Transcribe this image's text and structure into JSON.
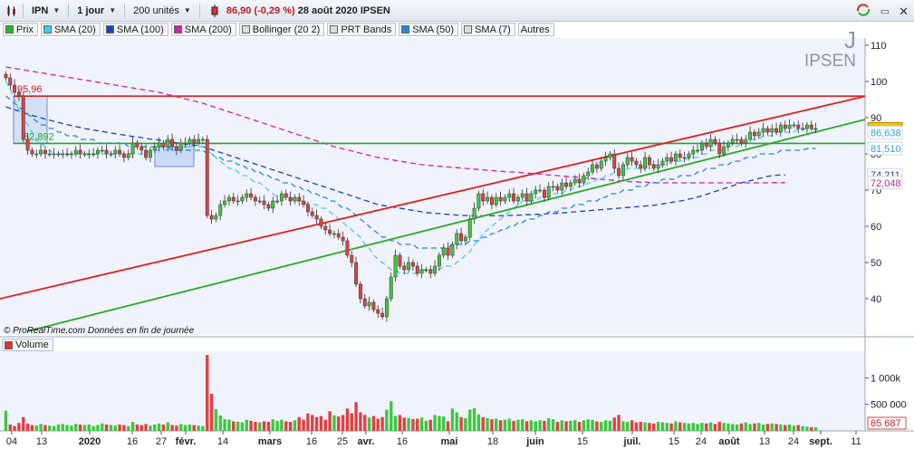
{
  "toolbar": {
    "symbol": "IPN",
    "period": "1 jour",
    "units": "200 unités",
    "price": "86,90",
    "change": "(-0,29 %)",
    "date": "28 août 2020",
    "name": "IPSEN"
  },
  "legend": [
    {
      "label": "Prix",
      "color": "#2bb52b"
    },
    {
      "label": "SMA (20)",
      "color": "#44ccee"
    },
    {
      "label": "SMA (100)",
      "color": "#1844b8"
    },
    {
      "label": "SMA (200)",
      "color": "#cc22aa"
    },
    {
      "label": "Bollinger (20 2)",
      "color": "#dddddd"
    },
    {
      "label": "PRT Bands",
      "color": "#dddddd"
    },
    {
      "label": "SMA (50)",
      "color": "#2288dd"
    },
    {
      "label": "SMA (7)",
      "color": "#dddddd"
    },
    {
      "label": "Autres",
      "color": null
    }
  ],
  "ticker": {
    "letter": "J",
    "name": "IPSEN"
  },
  "source_note": "© ProRealTime.com  Données en fin de journée",
  "volume_title": "Volume",
  "price_axis": {
    "ticks": [
      "110",
      "100",
      "90",
      "80",
      "70",
      "60",
      "50",
      "40"
    ],
    "badges": [
      {
        "text": "86,90",
        "color": "#111",
        "bg": "#f5c400"
      },
      {
        "text": "86,638",
        "color": "#2aa6d6",
        "bg": "#ffffff"
      },
      {
        "text": "81,510",
        "color": "#2aa6d6",
        "bg": "#ffffff"
      },
      {
        "text": "74,211",
        "color": "#1a3fa8",
        "bg": "#ffffff"
      },
      {
        "text": "72,048",
        "color": "#b5279a",
        "bg": "#ffffff"
      }
    ]
  },
  "volume_axis": {
    "ticks": [
      "1 000k",
      "500 000"
    ],
    "last": "65 687"
  },
  "annotations": {
    "high": "95,96",
    "low": "82,892"
  },
  "x_axis": {
    "labels": [
      "04",
      "13",
      "2020",
      "16",
      "27",
      "févr.",
      "14",
      "mars",
      "16",
      "25",
      "avr.",
      "16",
      "mai",
      "18",
      "juin",
      "15",
      "juil.",
      "15",
      "24",
      "août",
      "13",
      "24",
      "sept.",
      "11"
    ]
  },
  "chart_data": {
    "type": "candlestick",
    "symbol": "IPN",
    "last_close": 86.9,
    "ylim": [
      30,
      112
    ],
    "horizontal_levels": [
      {
        "value": 95.96,
        "color": "#e02020"
      },
      {
        "value": 82.892,
        "color": "#22aa22"
      }
    ],
    "closes": [
      101,
      99,
      97,
      96,
      84,
      81,
      80,
      80,
      81,
      80,
      80,
      80,
      80,
      80,
      80,
      80,
      81,
      80,
      80,
      80,
      80,
      81,
      81,
      80,
      80,
      81,
      80,
      79,
      80,
      83,
      82,
      81,
      79,
      81,
      82,
      83,
      82,
      84,
      82,
      81,
      83,
      83,
      84,
      83,
      84,
      84,
      63,
      62,
      63,
      66,
      67,
      68,
      67,
      67,
      68,
      69,
      68,
      67,
      67,
      66,
      65,
      67,
      67,
      69,
      68,
      67,
      68,
      67,
      66,
      64,
      63,
      62,
      60,
      59,
      58,
      58,
      57,
      56,
      52,
      50,
      44,
      40,
      38,
      39,
      37,
      36,
      35,
      40,
      46,
      52,
      49,
      48,
      50,
      49,
      47,
      48,
      48,
      47,
      49,
      52,
      54,
      52,
      55,
      58,
      56,
      57,
      62,
      65,
      69,
      67,
      68,
      66,
      68,
      67,
      68,
      69,
      67,
      68,
      69,
      67,
      69,
      70,
      70,
      68,
      71,
      71,
      70,
      72,
      71,
      72,
      73,
      72,
      74,
      75,
      77,
      76,
      78,
      79,
      80,
      76,
      74,
      77,
      79,
      78,
      77,
      76,
      79,
      77,
      76,
      77,
      78,
      79,
      78,
      80,
      79,
      79,
      80,
      81,
      81,
      83,
      82,
      84,
      83,
      80,
      82,
      83,
      84,
      84,
      83,
      84,
      86,
      85,
      86,
      87,
      86,
      87,
      86,
      88,
      87,
      88,
      88,
      87,
      87,
      88,
      87,
      87
    ],
    "volumes": [
      380,
      120,
      90,
      150,
      260,
      140,
      110,
      100,
      130,
      110,
      100,
      90,
      120,
      130,
      110,
      100,
      130,
      120,
      110,
      120,
      90,
      110,
      140,
      120,
      110,
      100,
      120,
      110,
      90,
      170,
      120,
      110,
      130,
      100,
      120,
      140,
      120,
      160,
      110,
      100,
      130,
      110,
      120,
      110,
      100,
      90,
      1430,
      700,
      410,
      290,
      220,
      210,
      180,
      170,
      160,
      210,
      190,
      170,
      160,
      180,
      170,
      220,
      190,
      210,
      180,
      170,
      200,
      260,
      210,
      330,
      300,
      260,
      280,
      210,
      370,
      290,
      270,
      300,
      420,
      330,
      540,
      350,
      300,
      250,
      280,
      230,
      260,
      400,
      560,
      280,
      300,
      250,
      240,
      220,
      230,
      250,
      190,
      210,
      300,
      280,
      270,
      180,
      420,
      350,
      260,
      240,
      400,
      430,
      310,
      260,
      240,
      220,
      230,
      200,
      210,
      230,
      190,
      210,
      220,
      180,
      200,
      180,
      200,
      190,
      240,
      220,
      170,
      200,
      180,
      190,
      200,
      170,
      200,
      220,
      210,
      180,
      170,
      200,
      190,
      250,
      300,
      180,
      170,
      200,
      160,
      170,
      160,
      150,
      140,
      170,
      160,
      150,
      140,
      180,
      160,
      150,
      140,
      150,
      130,
      150,
      140,
      160,
      130,
      170,
      150,
      140,
      130,
      120,
      140,
      160,
      130,
      140,
      150,
      120,
      130,
      140,
      130,
      120,
      110,
      120,
      100,
      110,
      90,
      80,
      70,
      66
    ],
    "sma_20": [
      100,
      98,
      95,
      92,
      90,
      88,
      86,
      84,
      83,
      82,
      81,
      80,
      80,
      80,
      80,
      80,
      80,
      80,
      80,
      80,
      80,
      80,
      80,
      80,
      80,
      80,
      80,
      80,
      80,
      80,
      80,
      80,
      80,
      81,
      81,
      81,
      81,
      81,
      81,
      81,
      82,
      82,
      82,
      82,
      82,
      82,
      81,
      80,
      79,
      78,
      77,
      76,
      76,
      75,
      74,
      74,
      73,
      72,
      72,
      71,
      70,
      69,
      68,
      68,
      68,
      68,
      67,
      67,
      67,
      66,
      66,
      66,
      65,
      65,
      64,
      63,
      62,
      61,
      60,
      59,
      58,
      57,
      55,
      54,
      52,
      51,
      50,
      49,
      48,
      48,
      47,
      47,
      47,
      47,
      47,
      48,
      48,
      48,
      48,
      48,
      49,
      49,
      49,
      50,
      51,
      52,
      53,
      55,
      56,
      58,
      59,
      60,
      61,
      62,
      63,
      64,
      65,
      66,
      67,
      67,
      67,
      67,
      68,
      68,
      68,
      69,
      69,
      69,
      70,
      70,
      71,
      71,
      71,
      72,
      72,
      73,
      73,
      74,
      74,
      75,
      75,
      75,
      76,
      76,
      76,
      76,
      76,
      77,
      77,
      77,
      77,
      77,
      78,
      78,
      78,
      78,
      79,
      79,
      79,
      80,
      80,
      81,
      81,
      81,
      81,
      82,
      82,
      82,
      83,
      83,
      84,
      84,
      84,
      85,
      85,
      85,
      86,
      86,
      86,
      86,
      86,
      87,
      87,
      87,
      87,
      86.6
    ],
    "sma_50": [
      96,
      95,
      94,
      93,
      92,
      91,
      90,
      89,
      88,
      88,
      87,
      87,
      86,
      86,
      85,
      85,
      85,
      84,
      84,
      84,
      84,
      83,
      83,
      83,
      83,
      83,
      83,
      83,
      82,
      82,
      82,
      82,
      82,
      82,
      82,
      82,
      82,
      82,
      81,
      81,
      81,
      81,
      81,
      81,
      81,
      81,
      80,
      80,
      79,
      79,
      78,
      78,
      78,
      77,
      77,
      76,
      76,
      75,
      75,
      74,
      74,
      73,
      73,
      72,
      72,
      72,
      71,
      71,
      70,
      70,
      69,
      69,
      68,
      68,
      67,
      67,
      66,
      65,
      65,
      64,
      63,
      62,
      61,
      60,
      59,
      58,
      57,
      57,
      56,
      56,
      55,
      55,
      55,
      55,
      54,
      54,
      54,
      54,
      54,
      54,
      54,
      54,
      55,
      55,
      55,
      55,
      56,
      56,
      56,
      57,
      57,
      58,
      58,
      59,
      59,
      60,
      60,
      61,
      61,
      62,
      62,
      62,
      63,
      63,
      64,
      64,
      64,
      65,
      65,
      65,
      66,
      66,
      66,
      67,
      67,
      67,
      68,
      68,
      69,
      69,
      69,
      70,
      70,
      70,
      71,
      71,
      71,
      72,
      72,
      72,
      73,
      73,
      73,
      73,
      74,
      74,
      74,
      74,
      75,
      75,
      76,
      76,
      76,
      77,
      77,
      77,
      78,
      78,
      78,
      79,
      79,
      79,
      80,
      80,
      80,
      80,
      80,
      81,
      81,
      81,
      81,
      81,
      81,
      81.5,
      81.5,
      81.5
    ],
    "sma_100": [
      93,
      92.6,
      92.2,
      91.8,
      91.4,
      91,
      90.6,
      90.3,
      90,
      89.6,
      89.3,
      89,
      88.7,
      88.4,
      88.1,
      87.8,
      87.5,
      87.3,
      87,
      86.8,
      86.6,
      86.4,
      86.2,
      86,
      85.8,
      85.6,
      85.4,
      85.2,
      85,
      84.8,
      84.7,
      84.5,
      84.3,
      84.1,
      84,
      83.8,
      83.6,
      83.4,
      83.3,
      83.1,
      82.9,
      82.7,
      82.5,
      82.4,
      82.2,
      82,
      81.6,
      81.2,
      80.8,
      80.4,
      80,
      79.6,
      79.2,
      78.8,
      78.4,
      78,
      77.6,
      77.2,
      76.8,
      76.4,
      76,
      75.6,
      75.2,
      74.8,
      74.4,
      74,
      73.6,
      73.2,
      72.8,
      72.4,
      72,
      71.6,
      71.2,
      70.8,
      70.4,
      70,
      69.6,
      69.2,
      68.8,
      68.4,
      68,
      67.6,
      67.2,
      66.8,
      66.4,
      66,
      65.8,
      65.6,
      65.4,
      65.2,
      65,
      64.8,
      64.6,
      64.4,
      64.2,
      64,
      63.8,
      63.7,
      63.6,
      63.5,
      63.4,
      63.3,
      63.2,
      63.1,
      63,
      63,
      62.9,
      62.9,
      62.9,
      62.9,
      62.9,
      62.9,
      62.9,
      62.9,
      62.9,
      63,
      63,
      63.1,
      63.1,
      63.2,
      63.2,
      63.3,
      63.3,
      63.4,
      63.5,
      63.5,
      63.6,
      63.7,
      63.8,
      63.9,
      64,
      64.1,
      64.2,
      64.3,
      64.4,
      64.5,
      64.6,
      64.7,
      64.8,
      64.9,
      65,
      65.1,
      65.2,
      65.3,
      65.4,
      65.5,
      65.6,
      65.7,
      65.8,
      66,
      66.2,
      66.4,
      66.6,
      66.8,
      67,
      67.2,
      67.5,
      67.8,
      68.1,
      68.4,
      68.8,
      69.2,
      69.6,
      70,
      70.4,
      70.8,
      71.2,
      71.6,
      72,
      72.3,
      72.6,
      72.9,
      73.2,
      73.5,
      73.8,
      74,
      74.1,
      74.2,
      74.21
    ],
    "sma_200": [
      104,
      103.8,
      103.6,
      103.4,
      103.2,
      103,
      102.8,
      102.6,
      102.4,
      102.2,
      102,
      101.8,
      101.6,
      101.4,
      101.2,
      101,
      100.8,
      100.6,
      100.4,
      100.2,
      100,
      99.8,
      99.6,
      99.4,
      99.2,
      99,
      98.8,
      98.6,
      98.4,
      98.2,
      98,
      97.8,
      97.6,
      97.4,
      97.2,
      97,
      96.7,
      96.4,
      96.1,
      95.8,
      95.5,
      95.2,
      94.9,
      94.6,
      94.3,
      94,
      93.6,
      93.2,
      92.8,
      92.4,
      92,
      91.6,
      91.2,
      90.8,
      90.4,
      90,
      89.6,
      89.2,
      88.8,
      88.4,
      88,
      87.6,
      87.2,
      86.8,
      86.4,
      86,
      85.6,
      85.2,
      84.8,
      84.4,
      84,
      83.6,
      83.2,
      82.8,
      82.4,
      82,
      81.7,
      81.4,
      81.1,
      80.8,
      80.5,
      80.2,
      79.9,
      79.6,
      79.3,
      79,
      78.8,
      78.6,
      78.4,
      78.2,
      78,
      77.8,
      77.6,
      77.4,
      77.2,
      77,
      76.9,
      76.8,
      76.7,
      76.6,
      76.5,
      76.4,
      76.3,
      76.2,
      76.1,
      76,
      75.9,
      75.8,
      75.7,
      75.6,
      75.5,
      75.4,
      75.3,
      75.2,
      75.1,
      75,
      75,
      74.9,
      74.8,
      74.7,
      74.6,
      74.5,
      74.4,
      74.3,
      74.2,
      74.1,
      74,
      73.9,
      73.8,
      73.7,
      73.6,
      73.5,
      73.4,
      73.3,
      73.2,
      73.1,
      73,
      72.9,
      72.8,
      72.7,
      72.6,
      72.5,
      72.4,
      72.3,
      72.3,
      72.2,
      72.2,
      72.1,
      72.1,
      72,
      72,
      72,
      72,
      72,
      72,
      72,
      72,
      72,
      72,
      72,
      72,
      72,
      72,
      72,
      72,
      72,
      72,
      72,
      72,
      72,
      72,
      72,
      72,
      72,
      72,
      72.05,
      72.05,
      72.05,
      72.048
    ]
  }
}
